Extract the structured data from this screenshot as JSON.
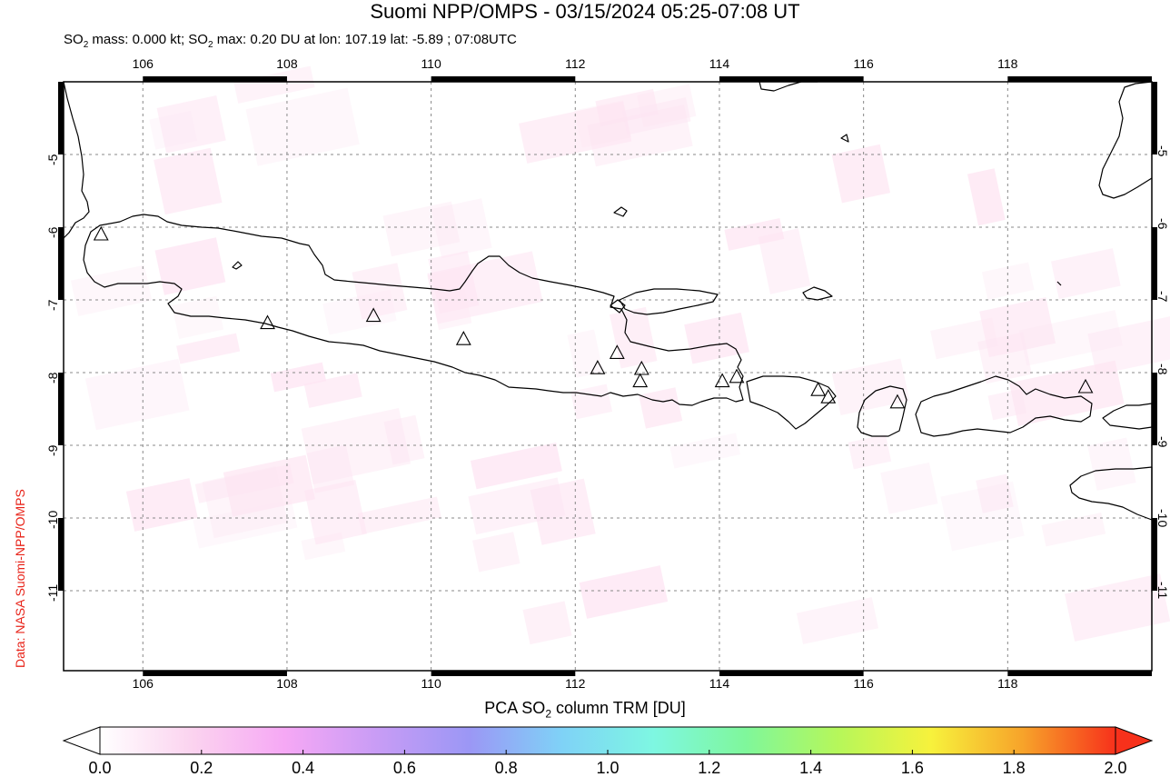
{
  "title": "Suomi NPP/OMPS - 03/15/2024 05:25-07:08 UT",
  "subtitle": {
    "p1": "SO",
    "sub1": "2",
    "p2": " mass: 0.000 kt; SO",
    "sub2": "2",
    "p3": " max: 0.20 DU at lon: 107.19 lat: -5.89 ; 07:08UTC"
  },
  "credit": "Data: NASA Suomi-NPP/OMPS",
  "map": {
    "lon_range": [
      104.9,
      120.0
    ],
    "lat_range": [
      -12.1,
      -4.0
    ],
    "lon_ticks": [
      "106",
      "108",
      "110",
      "112",
      "114",
      "116",
      "118"
    ],
    "lat_ticks": [
      "-5",
      "-6",
      "-7",
      "-8",
      "-9",
      "-10",
      "-11"
    ],
    "volcanoes": [
      {
        "lon": 105.42,
        "lat": -6.1
      },
      {
        "lon": 107.73,
        "lat": -7.32
      },
      {
        "lon": 109.2,
        "lat": -7.22
      },
      {
        "lon": 110.45,
        "lat": -7.54
      },
      {
        "lon": 112.31,
        "lat": -7.94
      },
      {
        "lon": 112.58,
        "lat": -7.73
      },
      {
        "lon": 112.92,
        "lat": -7.95
      },
      {
        "lon": 112.9,
        "lat": -8.12
      },
      {
        "lon": 114.04,
        "lat": -8.12
      },
      {
        "lon": 114.24,
        "lat": -8.06
      },
      {
        "lon": 115.37,
        "lat": -8.24
      },
      {
        "lon": 115.51,
        "lat": -8.34
      },
      {
        "lon": 116.47,
        "lat": -8.41
      },
      {
        "lon": 119.08,
        "lat": -8.2
      }
    ]
  },
  "colorbar": {
    "title_p1": "PCA SO",
    "title_sub": "2",
    "title_p2": " column TRM [DU]",
    "ticks": [
      "0.0",
      "0.2",
      "0.4",
      "0.6",
      "0.8",
      "1.0",
      "1.2",
      "1.4",
      "1.6",
      "1.8",
      "2.0"
    ],
    "colors": [
      "#ffffff",
      "#fbd3ef",
      "#f6a8f5",
      "#c89cf5",
      "#9b97f5",
      "#7fd2f7",
      "#7ef7e2",
      "#7ff79b",
      "#b6f75a",
      "#f7f23c",
      "#f7a32a",
      "#f7311b"
    ]
  },
  "colors": {
    "frame": "#000000",
    "grid": "#888888",
    "coast": "#000000",
    "so2_tint": "#fde4f2"
  }
}
